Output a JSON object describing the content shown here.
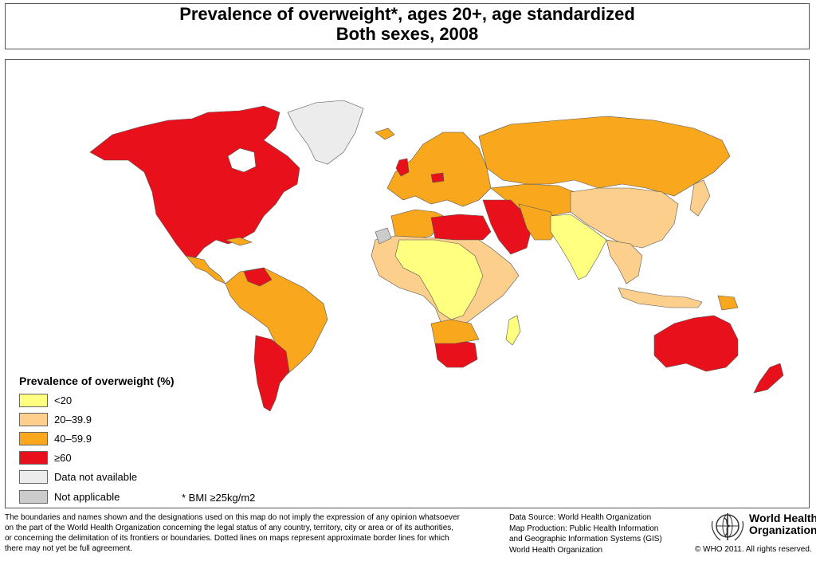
{
  "title": {
    "line1": "Prevalence of overweight*, ages 20+, age standardized",
    "line2": "Both sexes, 2008"
  },
  "colors": {
    "lt20": "#ffff80",
    "c20_39": "#fcd08c",
    "c40_59": "#f9a81e",
    "ge60": "#e8111b",
    "not_available": "#ececec",
    "not_applicable": "#cccccc",
    "ocean": "#ffffff",
    "border": "#555555"
  },
  "legend": {
    "title": "Prevalence of overweight (%)",
    "items": [
      {
        "label": "<20",
        "color": "#ffff80"
      },
      {
        "label": "20–39.9",
        "color": "#fcd08c"
      },
      {
        "label": "40–59.9",
        "color": "#f9a81e"
      },
      {
        "label": "≥60",
        "color": "#e8111b"
      },
      {
        "label": "Data not available",
        "color": "#ececec"
      },
      {
        "label": "Not applicable",
        "color": "#cccccc"
      }
    ]
  },
  "bmi_note": "* BMI ≥25kg/m2",
  "disclaimer": [
    "The boundaries and names shown and the designations used on this map do not imply the expression of any opinion whatsoever",
    "on the part of the World Health Organization concerning the legal status of any country, territory, city or area or of its authorities,",
    "or concerning the delimitation of its frontiers or boundaries.  Dotted lines on maps represent approximate border lines for which",
    "there may not yet be full agreement."
  ],
  "source": [
    "Data Source: World Health Organization",
    "Map Production: Public Health Information",
    "and Geographic Information Systems (GIS)",
    "World Health Organization"
  ],
  "who": {
    "name_line1": "World Health",
    "name_line2": "Organization",
    "copyright": "© WHO 2011. All rights reserved."
  }
}
